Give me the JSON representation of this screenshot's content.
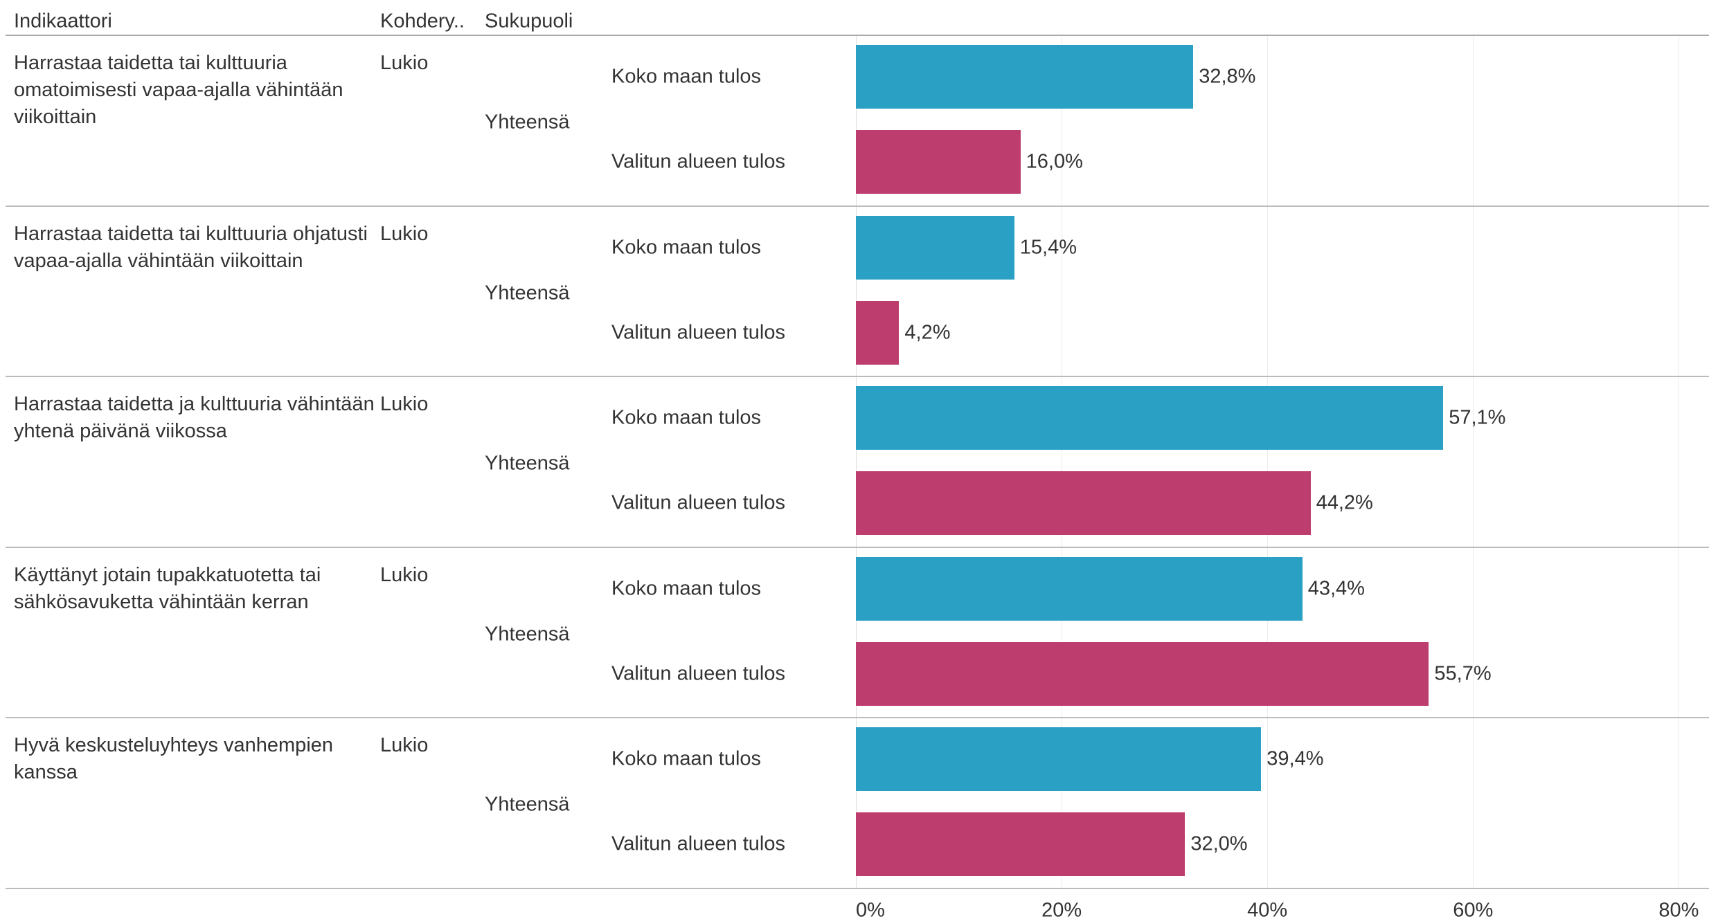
{
  "chart_data": {
    "type": "bar",
    "orientation": "horizontal",
    "column_headers": [
      "Indikaattori",
      "Kohdery..",
      "Sukupuoli"
    ],
    "categories": [
      "Harrastaa taidetta tai kulttuuria omatoimisesti vapaa-ajalla vähintään viikoittain",
      "Harrastaa taidetta tai kulttuuria ohjatusti vapaa-ajalla vähintään viikoittain",
      "Harrastaa taidetta ja kulttuuria vähintään yhtenä päivänä viikossa",
      "Käyttänyt jotain tupakkatuotetta tai sähkösavuketta vähintään kerran",
      "Hyvä keskusteluyhteys vanhempien kanssa"
    ],
    "target_group": [
      "Lukio",
      "Lukio",
      "Lukio",
      "Lukio",
      "Lukio"
    ],
    "gender": [
      "Yhteensä",
      "Yhteensä",
      "Yhteensä",
      "Yhteensä",
      "Yhteensä"
    ],
    "series": [
      {
        "name": "Koko maan tulos",
        "color": "#2aa0c4",
        "values": [
          32.8,
          15.4,
          57.1,
          43.4,
          39.4
        ],
        "value_labels": [
          "32,8%",
          "15,4%",
          "57,1%",
          "43,4%",
          "39,4%"
        ]
      },
      {
        "name": "Valitun alueen tulos",
        "color": "#bd3d6f",
        "values": [
          16.0,
          4.2,
          44.2,
          55.7,
          32.0
        ],
        "value_labels": [
          "16,0%",
          "4,2%",
          "44,2%",
          "55,7%",
          "32,0%"
        ]
      }
    ],
    "xlim": [
      0,
      83
    ],
    "xticks": [
      {
        "value": 0,
        "label": "0%"
      },
      {
        "value": 20,
        "label": "20%"
      },
      {
        "value": 40,
        "label": "40%"
      },
      {
        "value": 60,
        "label": "60%"
      },
      {
        "value": 80,
        "label": "80%"
      }
    ],
    "grid": true
  }
}
